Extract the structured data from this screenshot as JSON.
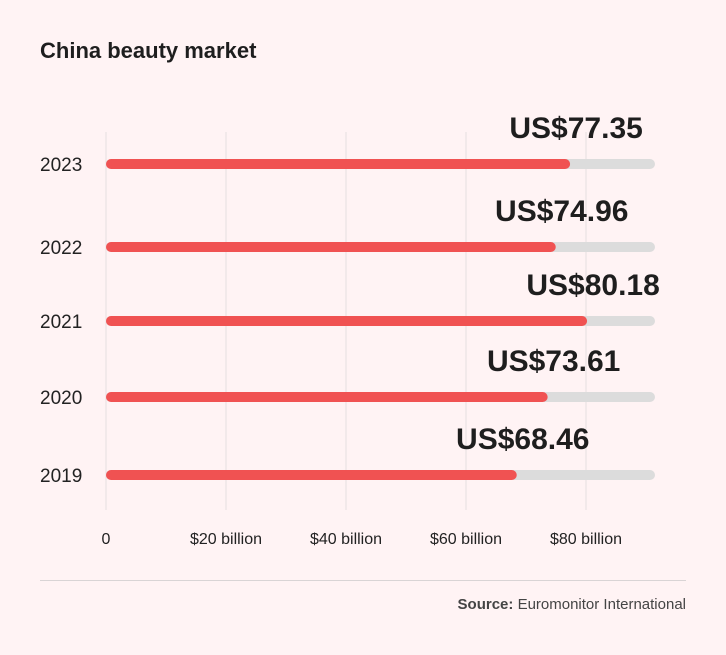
{
  "title": "China beauty market",
  "source": {
    "label": "Source:",
    "text": "Euromonitor International"
  },
  "colors": {
    "bar": "#f05252",
    "track": "#dcdcdc",
    "grid": "#e6dfe0",
    "text": "#222222"
  },
  "chart_data": {
    "type": "bar",
    "orientation": "horizontal",
    "title": "China beauty market",
    "categories": [
      "2023",
      "2022",
      "2021",
      "2020",
      "2019"
    ],
    "values": [
      77.35,
      74.96,
      80.18,
      73.61,
      68.46
    ],
    "value_labels": [
      "US$77.35",
      "US$74.96",
      "US$80.18",
      "US$73.61",
      "US$68.46"
    ],
    "x_ticks": [
      {
        "value": 0,
        "label": "0"
      },
      {
        "value": 20,
        "label": "$20 billion"
      },
      {
        "value": 40,
        "label": "$40 billion"
      },
      {
        "value": 60,
        "label": "$60 billion"
      },
      {
        "value": 80,
        "label": "$80 billion"
      }
    ],
    "xlim": [
      0,
      91.5
    ],
    "xlabel": "",
    "ylabel": "",
    "grid": true,
    "legend": "none"
  }
}
